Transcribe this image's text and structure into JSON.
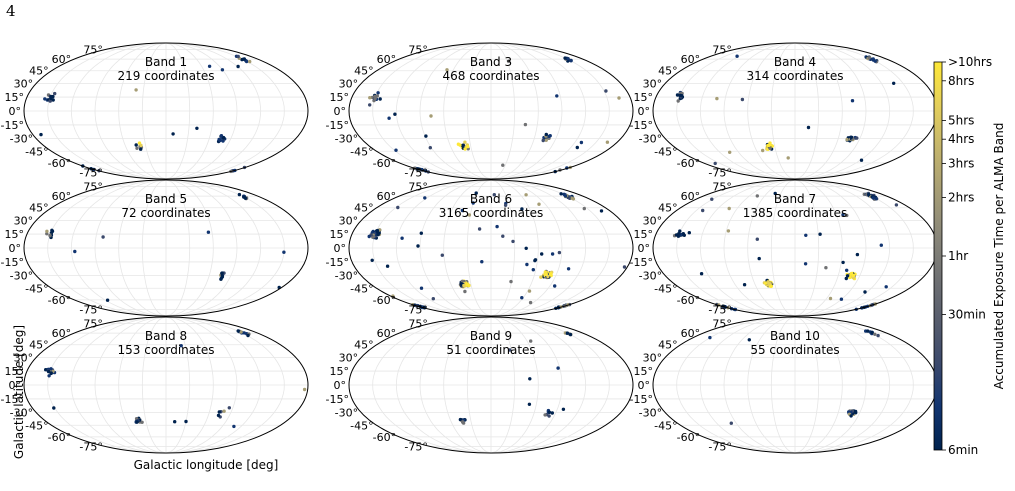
{
  "page_number": "4",
  "axis_labels": {
    "ylabel": "Galactic latitude [deg]",
    "xlabel": "Galactic longitude [deg]"
  },
  "latitude_ticks": [
    "75°",
    "60°",
    "45°",
    "30°",
    "15°",
    "0°",
    "-15°",
    "-30°",
    "-45°",
    "-60°",
    "-75°"
  ],
  "colorbar": {
    "label": "Accumulated Exposure Time per ALMA Band",
    "ticks": [
      "6min",
      "30min",
      "1hr",
      "2hrs",
      "3hrs",
      "4hrs",
      "5hrs",
      "8hrs",
      ">10hrs"
    ],
    "colormap": "cividis",
    "scale": "log",
    "range_hours": [
      0.1,
      10
    ],
    "colors": [
      "#00224e",
      "#123570",
      "#3b496c",
      "#575d6d",
      "#707173",
      "#8a8779",
      "#a69d75",
      "#c4b56c",
      "#e4cf5b",
      "#fee838"
    ]
  },
  "chart_data": [
    {
      "type": "scatter",
      "projection": "mollweide",
      "title": "Band 1",
      "subtitle": "219 coordinates",
      "count": 219,
      "clusters": [
        [
          282,
          -30,
          "d"
        ],
        [
          210,
          60,
          "d"
        ],
        [
          180,
          -70,
          "d"
        ],
        [
          150,
          15,
          "d"
        ],
        [
          40,
          -40,
          "y"
        ]
      ]
    },
    {
      "type": "scatter",
      "projection": "mollweide",
      "title": "Band 3",
      "subtitle": "468 coordinates",
      "count": 468,
      "clusters": [
        [
          282,
          -30,
          "d"
        ],
        [
          210,
          60,
          "d"
        ],
        [
          180,
          -70,
          "d"
        ],
        [
          150,
          15,
          "d"
        ],
        [
          40,
          -40,
          "y"
        ]
      ]
    },
    {
      "type": "scatter",
      "projection": "mollweide",
      "title": "Band 4",
      "subtitle": "314 coordinates",
      "count": 314,
      "clusters": [
        [
          282,
          -30,
          "d"
        ],
        [
          210,
          60,
          "d"
        ],
        [
          150,
          15,
          "d"
        ],
        [
          40,
          -40,
          "y"
        ]
      ]
    },
    {
      "type": "scatter",
      "projection": "mollweide",
      "title": "Band 5",
      "subtitle": "72 coordinates",
      "count": 72,
      "clusters": [
        [
          282,
          -30,
          "d"
        ],
        [
          210,
          60,
          "d"
        ],
        [
          150,
          15,
          "d"
        ]
      ]
    },
    {
      "type": "scatter",
      "projection": "mollweide",
      "title": "Band 6",
      "subtitle": "3165 coordinates",
      "count": 3165,
      "clusters": [
        [
          282,
          -30,
          "y"
        ],
        [
          210,
          60,
          "d"
        ],
        [
          180,
          -70,
          "d"
        ],
        [
          150,
          15,
          "d"
        ],
        [
          40,
          -40,
          "y"
        ]
      ]
    },
    {
      "type": "scatter",
      "projection": "mollweide",
      "title": "Band 7",
      "subtitle": "1385 coordinates",
      "count": 1385,
      "clusters": [
        [
          282,
          -30,
          "y"
        ],
        [
          210,
          60,
          "d"
        ],
        [
          180,
          -70,
          "d"
        ],
        [
          150,
          15,
          "d"
        ],
        [
          40,
          -40,
          "y"
        ]
      ]
    },
    {
      "type": "scatter",
      "projection": "mollweide",
      "title": "Band 8",
      "subtitle": "153 coordinates",
      "count": 153,
      "clusters": [
        [
          282,
          -30,
          "d"
        ],
        [
          210,
          60,
          "d"
        ],
        [
          150,
          15,
          "d"
        ],
        [
          40,
          -40,
          "d"
        ]
      ]
    },
    {
      "type": "scatter",
      "projection": "mollweide",
      "title": "Band 9",
      "subtitle": "51 coordinates",
      "count": 51,
      "clusters": [
        [
          282,
          -30,
          "d"
        ],
        [
          210,
          60,
          "d"
        ],
        [
          40,
          -40,
          "d"
        ]
      ]
    },
    {
      "type": "scatter",
      "projection": "mollweide",
      "title": "Band 10",
      "subtitle": "55 coordinates",
      "count": 55,
      "clusters": [
        [
          282,
          -30,
          "d"
        ],
        [
          210,
          60,
          "d"
        ]
      ]
    }
  ]
}
